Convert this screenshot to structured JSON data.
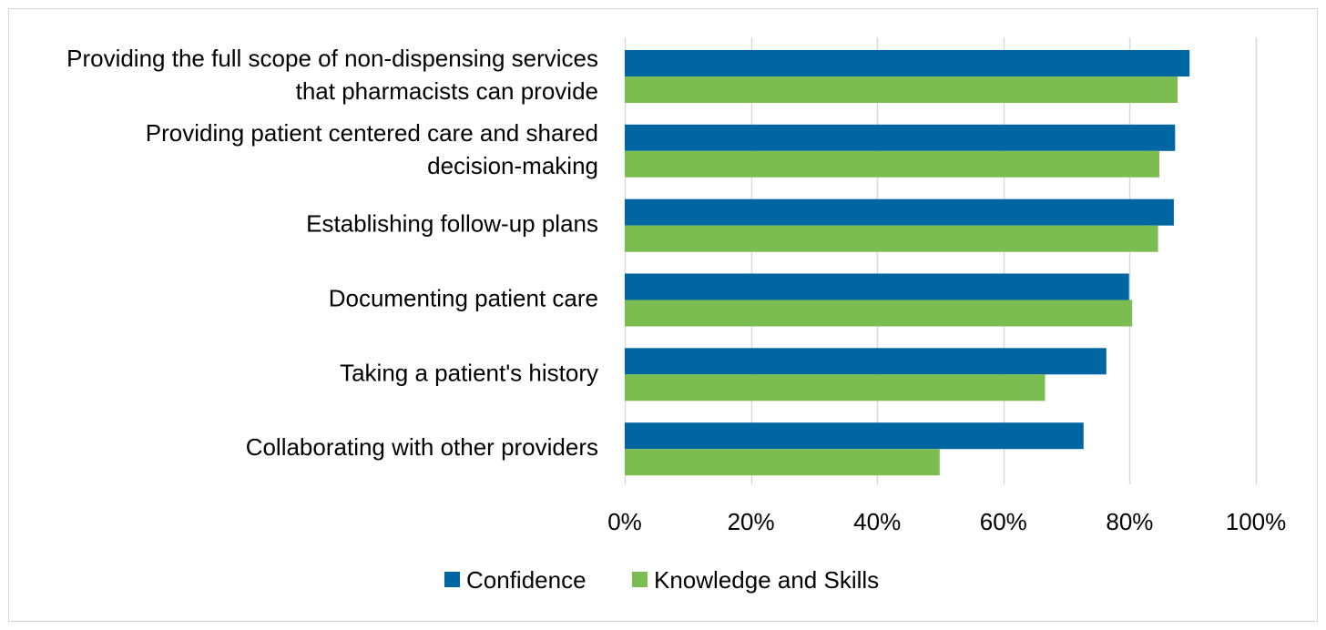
{
  "chart_data": {
    "type": "bar",
    "orientation": "horizontal",
    "title": "",
    "xlabel": "",
    "ylabel": "",
    "xlim": [
      0,
      100
    ],
    "x_ticks": [
      "0%",
      "20%",
      "40%",
      "60%",
      "80%",
      "100%"
    ],
    "grid": true,
    "legend_position": "bottom",
    "categories": [
      [
        "Providing the full scope of non-dispensing services",
        "that pharmacists can provide"
      ],
      [
        "Providing patient centered care and shared",
        "decision-making"
      ],
      [
        "Establishing follow-up plans"
      ],
      [
        "Documenting patient care"
      ],
      [
        "Taking a patient's history"
      ],
      [
        "Collaborating with other providers"
      ]
    ],
    "series": [
      {
        "name": "Confidence",
        "color": "#0066a1",
        "values": [
          89.5,
          87.2,
          87.0,
          79.9,
          76.3,
          72.7
        ]
      },
      {
        "name": "Knowledge and Skills",
        "color": "#7cbd52",
        "values": [
          87.6,
          84.7,
          84.5,
          80.4,
          66.6,
          49.9
        ]
      }
    ],
    "gridline_color": "#d9d9d9"
  }
}
